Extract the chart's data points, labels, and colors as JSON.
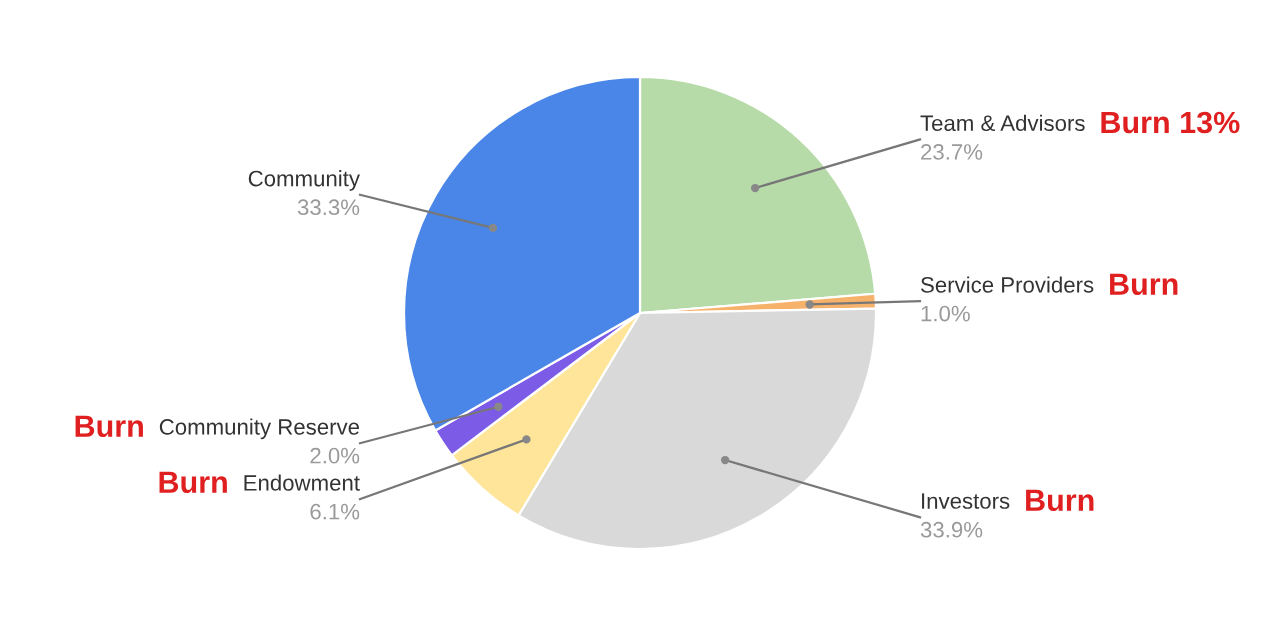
{
  "chart_data": {
    "type": "pie",
    "categories": [
      "Team & Advisors",
      "Service Providers",
      "Investors",
      "Endowment",
      "Community Reserve",
      "Community"
    ],
    "values": [
      23.7,
      1.0,
      33.9,
      6.1,
      2.0,
      33.3
    ],
    "colors": [
      "#b7dba8",
      "#f6b26b",
      "#d9d9d9",
      "#ffe599",
      "#7c5ce6",
      "#4a86e8"
    ],
    "value_labels": [
      "23.7%",
      "1.0%",
      "33.9%",
      "6.1%",
      "2.0%",
      "33.3%"
    ],
    "annotations": [
      {
        "text": "Burn 13%",
        "x": "Team & Advisors"
      },
      {
        "text": "Burn",
        "x": "Service Providers"
      },
      {
        "text": "Burn",
        "x": "Investors"
      },
      {
        "text": "Burn",
        "x": "Endowment"
      },
      {
        "text": "Burn",
        "x": "Community Reserve"
      }
    ]
  }
}
